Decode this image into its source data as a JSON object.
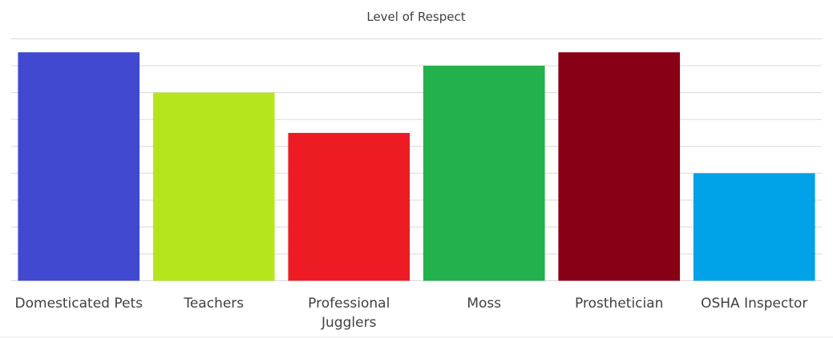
{
  "chart_data": {
    "type": "bar",
    "title": "Level of Respect",
    "xlabel": "",
    "ylabel": "",
    "categories": [
      [
        "Domesticated Pets"
      ],
      [
        "Teachers"
      ],
      [
        "Professional",
        "Jugglers"
      ],
      [
        "Moss"
      ],
      [
        "Prosthetician"
      ],
      [
        "OSHA Inspector"
      ]
    ],
    "values": [
      8.5,
      7,
      5.5,
      8,
      8.5,
      4
    ],
    "colors": [
      "#4149d0",
      "#b5e61d",
      "#ed1c24",
      "#22b14c",
      "#880015",
      "#00a2e8"
    ],
    "ylim": [
      0,
      9
    ],
    "ytick_step": 1,
    "grid": true,
    "y_tick_labels_shown": false,
    "legend": "none"
  }
}
